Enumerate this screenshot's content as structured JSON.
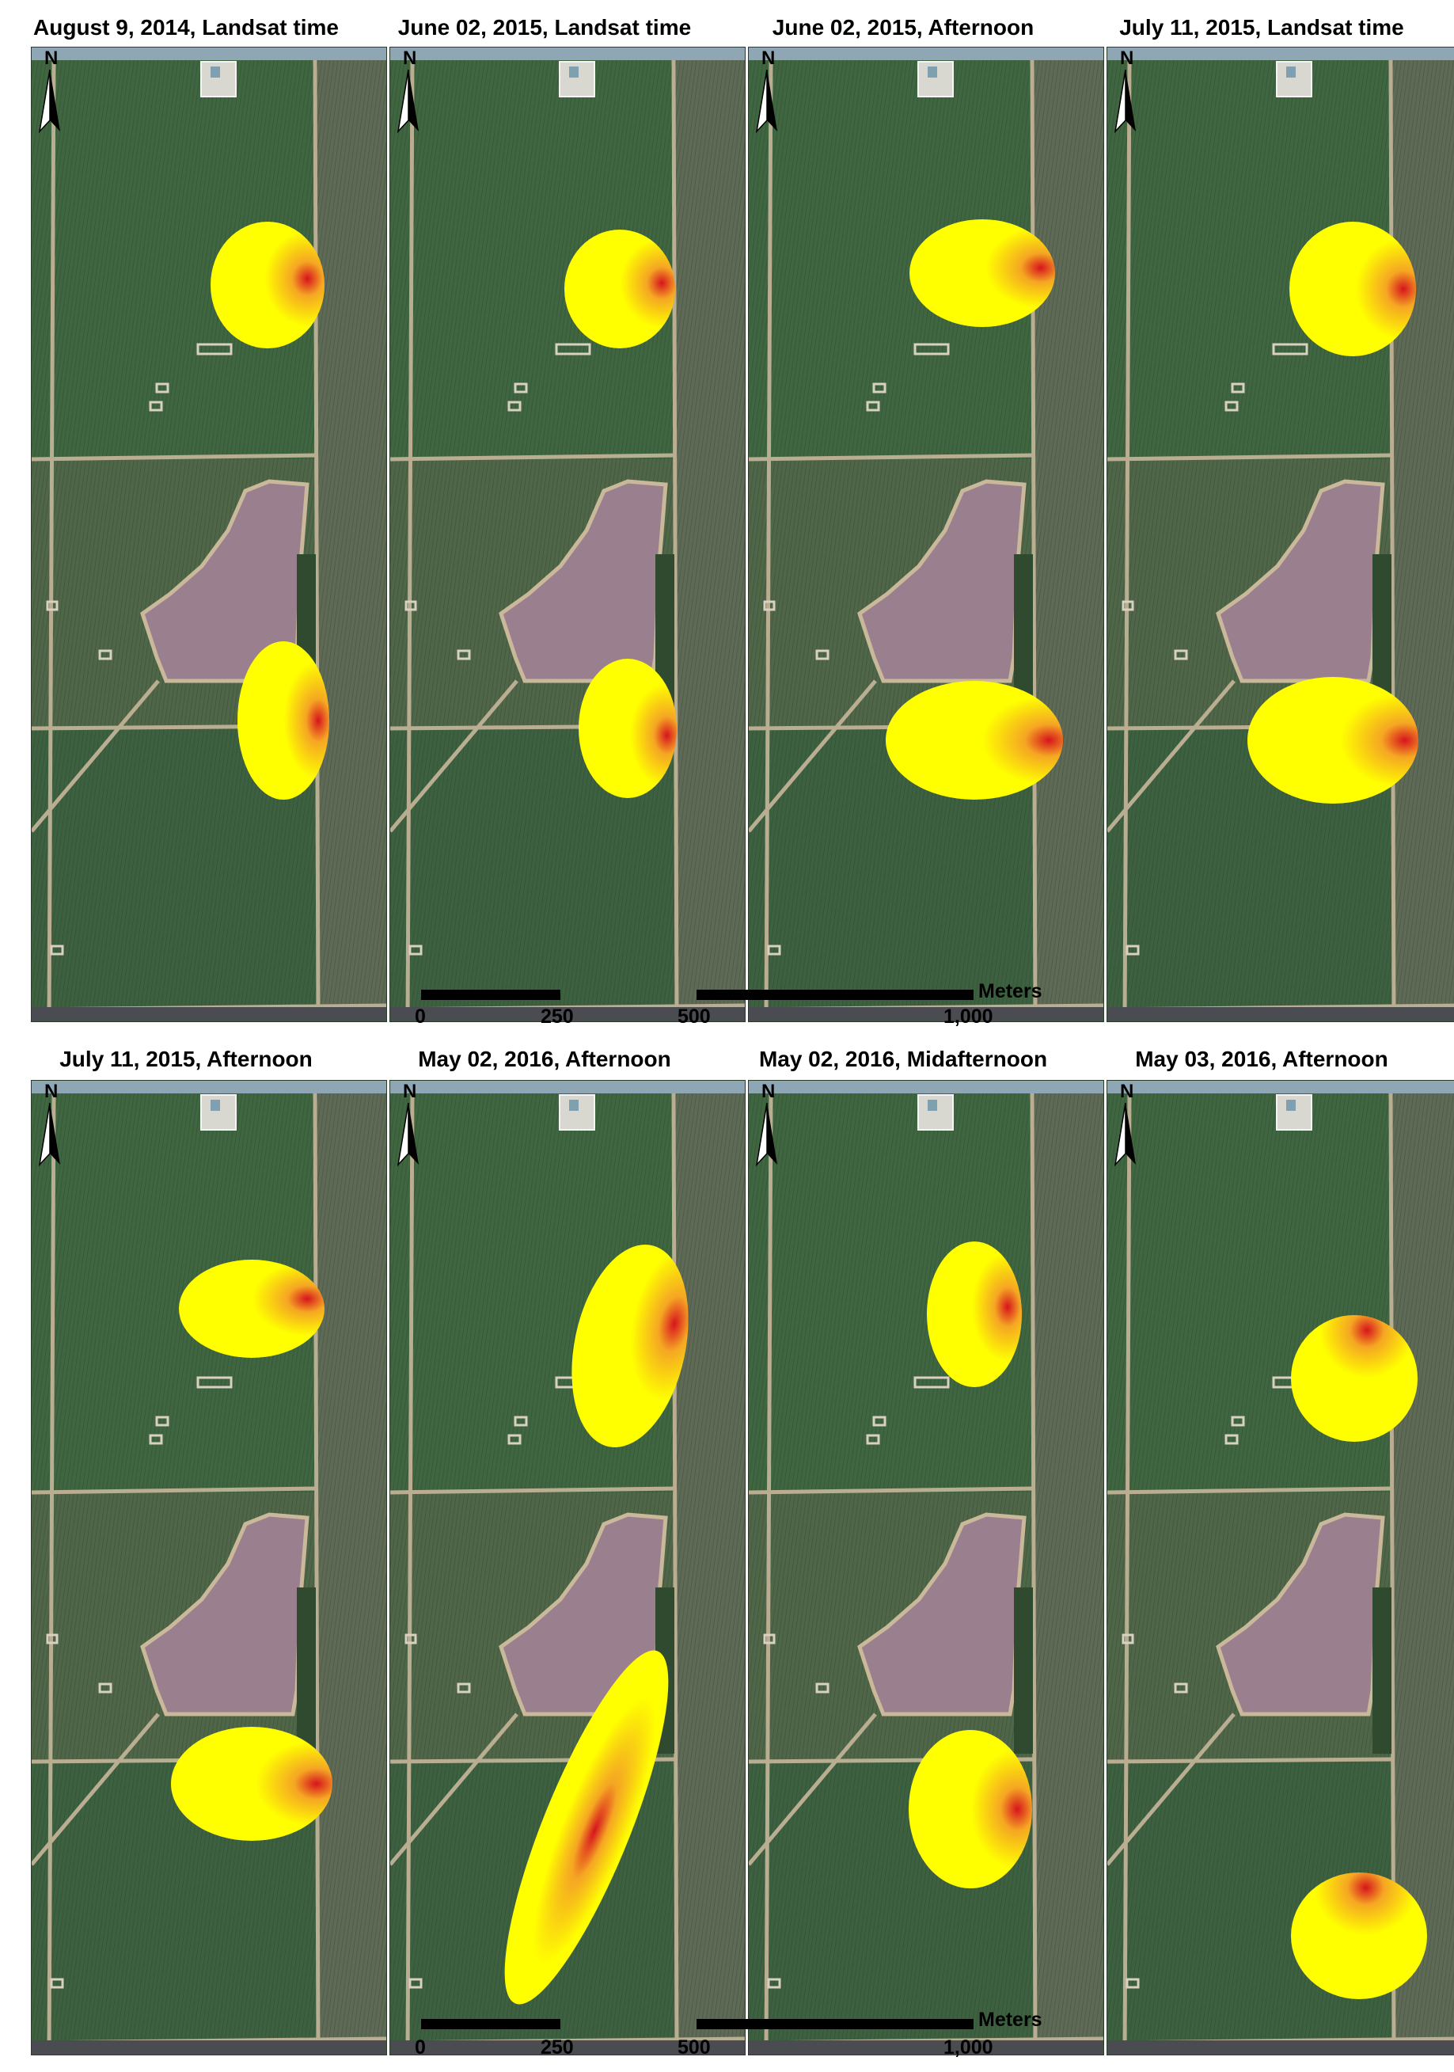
{
  "panels": [
    {
      "title": "August 9, 2014, Landsat time"
    },
    {
      "title": "June 02, 2015, Landsat time"
    },
    {
      "title": "June 02, 2015, Afternoon"
    },
    {
      "title": "July 11, 2015, Landsat time"
    },
    {
      "title": "July 11, 2015, Afternoon"
    },
    {
      "title": "May 02, 2016, Afternoon"
    },
    {
      "title": "May 02, 2016, Midafternoon"
    },
    {
      "title": "May 03, 2016, Afternoon"
    }
  ],
  "north_label": "N",
  "scale": {
    "unit": "Meters",
    "ticks": [
      "0",
      "250",
      "500",
      "1,000"
    ]
  },
  "colors": {
    "footprint_outer": "#ffff00",
    "footprint_mid": "#f5a623",
    "footprint_peak": "#d7141e",
    "field_green": "#3c5e3b",
    "fallow_pink": "#9a7f8e"
  }
}
